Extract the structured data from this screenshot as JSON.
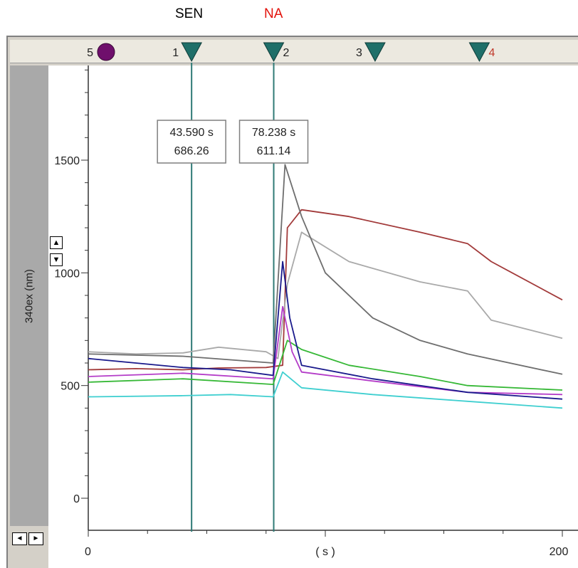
{
  "annotations": [
    {
      "text": "SEN",
      "color": "#000000"
    },
    {
      "text": "NA",
      "color": "#e3120b"
    }
  ],
  "markers": [
    {
      "label": "5",
      "shape": "circle",
      "x": 7.5,
      "color": "#6f0f6c",
      "label_color": "#222222"
    },
    {
      "label": "1",
      "shape": "triangle",
      "x": 43.59,
      "color": "#1f6f69",
      "label_color": "#222222"
    },
    {
      "label": "2",
      "shape": "triangle",
      "x": 78.238,
      "color": "#1f6f69",
      "label_color": "#222222",
      "label_side": "right"
    },
    {
      "label": "3",
      "shape": "triangle",
      "x": 121,
      "color": "#1f6f69",
      "label_color": "#222222"
    },
    {
      "label": "4",
      "shape": "triangle",
      "x": 165,
      "color": "#1f6f69",
      "label_color": "#c0392b",
      "label_side": "right"
    }
  ],
  "readouts": [
    {
      "time": "43.590 s",
      "value": "686.26",
      "cursor_x": 43.59
    },
    {
      "time": "78.238 s",
      "value": "611.14",
      "cursor_x": 78.238
    }
  ],
  "controls": {
    "spin_up": "▲",
    "spin_down": "▼",
    "scroll_left": "◄",
    "scroll_right": "►"
  },
  "chart_data": {
    "type": "line",
    "title": "",
    "xlabel": "( s )",
    "ylabel": "340ex (nm)",
    "xlim": [
      0,
      200
    ],
    "ylim": [
      -120,
      1920
    ],
    "x_ticks": [
      0,
      200
    ],
    "y_ticks": [
      0,
      500,
      1000,
      1500
    ],
    "grid": false,
    "series": [
      {
        "color": "#a23a3a",
        "points": [
          [
            0,
            570
          ],
          [
            20,
            575
          ],
          [
            40,
            570
          ],
          [
            55,
            578
          ],
          [
            75,
            580
          ],
          [
            82,
            590
          ],
          [
            84,
            1200
          ],
          [
            90,
            1280
          ],
          [
            110,
            1250
          ],
          [
            140,
            1180
          ],
          [
            160,
            1130
          ],
          [
            170,
            1050
          ],
          [
            200,
            880
          ]
        ]
      },
      {
        "color": "#a9a9a9",
        "points": [
          [
            0,
            650
          ],
          [
            20,
            640
          ],
          [
            40,
            645
          ],
          [
            55,
            670
          ],
          [
            75,
            650
          ],
          [
            80,
            620
          ],
          [
            84,
            950
          ],
          [
            90,
            1180
          ],
          [
            110,
            1050
          ],
          [
            140,
            960
          ],
          [
            160,
            920
          ],
          [
            170,
            790
          ],
          [
            200,
            710
          ]
        ]
      },
      {
        "color": "#6e6e6e",
        "points": [
          [
            0,
            640
          ],
          [
            40,
            630
          ],
          [
            78,
            600
          ],
          [
            83,
            1480
          ],
          [
            90,
            1250
          ],
          [
            100,
            1000
          ],
          [
            120,
            800
          ],
          [
            140,
            700
          ],
          [
            160,
            640
          ],
          [
            200,
            550
          ]
        ]
      },
      {
        "color": "#36b836",
        "points": [
          [
            0,
            515
          ],
          [
            40,
            530
          ],
          [
            78,
            505
          ],
          [
            84,
            700
          ],
          [
            90,
            660
          ],
          [
            110,
            590
          ],
          [
            140,
            540
          ],
          [
            160,
            500
          ],
          [
            200,
            480
          ]
        ]
      },
      {
        "color": "#b43cc8",
        "points": [
          [
            0,
            540
          ],
          [
            40,
            555
          ],
          [
            78,
            530
          ],
          [
            82,
            850
          ],
          [
            86,
            650
          ],
          [
            90,
            560
          ],
          [
            120,
            520
          ],
          [
            160,
            470
          ],
          [
            200,
            460
          ]
        ]
      },
      {
        "color": "#1a1a8c",
        "points": [
          [
            0,
            620
          ],
          [
            20,
            600
          ],
          [
            40,
            580
          ],
          [
            60,
            570
          ],
          [
            78,
            545
          ],
          [
            82,
            1050
          ],
          [
            85,
            800
          ],
          [
            90,
            590
          ],
          [
            120,
            530
          ],
          [
            160,
            470
          ],
          [
            200,
            440
          ]
        ]
      },
      {
        "color": "#3fcfd0",
        "points": [
          [
            0,
            450
          ],
          [
            40,
            455
          ],
          [
            60,
            460
          ],
          [
            78,
            450
          ],
          [
            82,
            560
          ],
          [
            90,
            490
          ],
          [
            120,
            460
          ],
          [
            160,
            430
          ],
          [
            200,
            400
          ]
        ]
      }
    ]
  }
}
